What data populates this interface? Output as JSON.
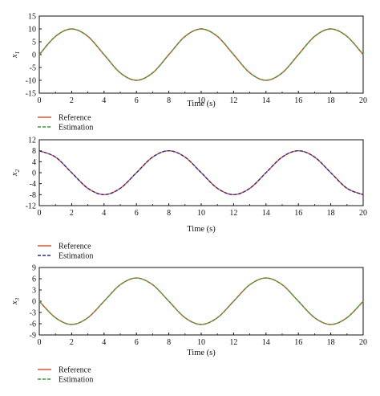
{
  "chart_data": [
    {
      "type": "line",
      "ylabel": "x",
      "ylabel_sub": "1",
      "xlabel": "Time (s)",
      "xlim": [
        0,
        20
      ],
      "ylim": [
        -15,
        15
      ],
      "xticks": [
        "0",
        "2",
        "4",
        "6",
        "8",
        "10",
        "12",
        "14",
        "16",
        "18",
        "20"
      ],
      "yticks": [
        "15",
        "10",
        "5",
        "0",
        "-5",
        "-10",
        "-15"
      ],
      "series": [
        {
          "name": "Reference",
          "color": "#e8532a",
          "dash": "solid",
          "x": [
            0,
            1,
            2,
            3,
            4,
            5,
            6,
            7,
            8,
            9,
            10,
            11,
            12,
            13,
            14,
            15,
            16,
            17,
            18,
            19,
            20
          ],
          "y": [
            0,
            7.1,
            10,
            7.1,
            0,
            -7.1,
            -10,
            -7.1,
            0,
            7.1,
            10,
            7.1,
            0,
            -7.1,
            -10,
            -7.1,
            0,
            7.1,
            10,
            7.1,
            0
          ]
        },
        {
          "name": "Estimation",
          "color": "#3a9a3a",
          "dash": "dashed",
          "x": [
            0,
            1,
            2,
            3,
            4,
            5,
            6,
            7,
            8,
            9,
            10,
            11,
            12,
            13,
            14,
            15,
            16,
            17,
            18,
            19,
            20
          ],
          "y": [
            0,
            7.1,
            10,
            7.1,
            0,
            -7.1,
            -10,
            -7.1,
            0,
            7.1,
            10,
            7.1,
            0,
            -7.1,
            -10,
            -7.1,
            0,
            7.1,
            10,
            7.1,
            0
          ]
        }
      ],
      "legend_position": "below"
    },
    {
      "type": "line",
      "ylabel": "x",
      "ylabel_sub": "2",
      "xlabel": "Time (s)",
      "xlim": [
        0,
        20
      ],
      "ylim": [
        -12,
        12
      ],
      "xticks": [
        "0",
        "2",
        "4",
        "6",
        "8",
        "10",
        "12",
        "14",
        "16",
        "18",
        "20"
      ],
      "yticks": [
        "12",
        "8",
        "4",
        "0",
        "-4",
        "-8",
        "-12"
      ],
      "series": [
        {
          "name": "Reference",
          "color": "#e8532a",
          "dash": "solid",
          "x": [
            0,
            1,
            2,
            3,
            4,
            5,
            6,
            7,
            8,
            9,
            10,
            11,
            12,
            13,
            14,
            15,
            16,
            17,
            18,
            19,
            20
          ],
          "y": [
            8,
            5.7,
            0,
            -5.7,
            -8,
            -5.7,
            0,
            5.7,
            8,
            5.7,
            0,
            -5.7,
            -8,
            -5.7,
            0,
            5.7,
            8,
            5.7,
            0,
            -5.7,
            -8
          ]
        },
        {
          "name": "Estimation",
          "color": "#2b2f8f",
          "dash": "dashed",
          "x": [
            0,
            1,
            2,
            3,
            4,
            5,
            6,
            7,
            8,
            9,
            10,
            11,
            12,
            13,
            14,
            15,
            16,
            17,
            18,
            19,
            20
          ],
          "y": [
            8,
            5.7,
            0,
            -5.7,
            -8,
            -5.7,
            0,
            5.7,
            8,
            5.7,
            0,
            -5.7,
            -8,
            -5.7,
            0,
            5.7,
            8,
            5.7,
            0,
            -5.7,
            -8
          ]
        }
      ],
      "legend_position": "below"
    },
    {
      "type": "line",
      "ylabel": "x",
      "ylabel_sub": "3",
      "xlabel": "Time (s)",
      "xlim": [
        0,
        20
      ],
      "ylim": [
        -9,
        9
      ],
      "xticks": [
        "0",
        "2",
        "4",
        "6",
        "8",
        "10",
        "12",
        "14",
        "16",
        "18",
        "20"
      ],
      "yticks": [
        "9",
        "6",
        "3",
        "0",
        "-3",
        "-6",
        "-9"
      ],
      "series": [
        {
          "name": "Reference",
          "color": "#e8532a",
          "dash": "solid",
          "x": [
            0,
            1,
            2,
            3,
            4,
            5,
            6,
            7,
            8,
            9,
            10,
            11,
            12,
            13,
            14,
            15,
            16,
            17,
            18,
            19,
            20
          ],
          "y": [
            0,
            -4.4,
            -6.2,
            -4.4,
            0,
            4.4,
            6.2,
            4.4,
            0,
            -4.4,
            -6.2,
            -4.4,
            0,
            4.4,
            6.2,
            4.4,
            0,
            -4.4,
            -6.2,
            -4.4,
            0
          ]
        },
        {
          "name": "Estimation",
          "color": "#3a9a3a",
          "dash": "dashed",
          "x": [
            0,
            1,
            2,
            3,
            4,
            5,
            6,
            7,
            8,
            9,
            10,
            11,
            12,
            13,
            14,
            15,
            16,
            17,
            18,
            19,
            20
          ],
          "y": [
            0,
            -4.4,
            -6.2,
            -4.4,
            0,
            4.4,
            6.2,
            4.4,
            0,
            -4.4,
            -6.2,
            -4.4,
            0,
            4.4,
            6.2,
            4.4,
            0,
            -4.4,
            -6.2,
            -4.4,
            0
          ]
        }
      ],
      "legend_position": "below"
    }
  ]
}
